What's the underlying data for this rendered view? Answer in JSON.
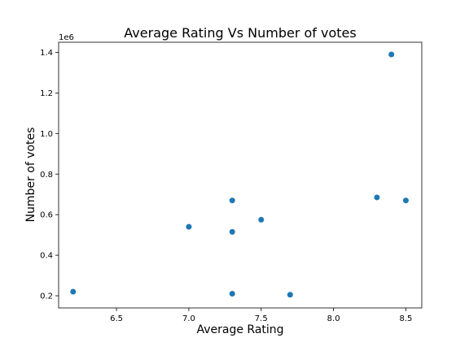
{
  "chart_data": {
    "type": "scatter",
    "title": "Average Rating  Vs Number of votes",
    "xlabel": "Average Rating",
    "ylabel": "Number of votes",
    "y_offset_label": "1e6",
    "xlim": [
      6.1,
      8.61
    ],
    "ylim": [
      0.14,
      1.45
    ],
    "xticks": [
      6.5,
      7.0,
      7.5,
      8.0,
      8.5
    ],
    "xtick_labels": [
      "6.5",
      "7.0",
      "7.5",
      "8.0",
      "8.5"
    ],
    "yticks": [
      0.2,
      0.4,
      0.6,
      0.8,
      1.0,
      1.2,
      1.4
    ],
    "ytick_labels": [
      "0.2",
      "0.4",
      "0.6",
      "0.8",
      "1.0",
      "1.2",
      "1.4"
    ],
    "grid": false,
    "marker_color": "#1f77b4",
    "points": [
      {
        "x": 6.2,
        "y": 0.22
      },
      {
        "x": 7.0,
        "y": 0.54
      },
      {
        "x": 7.3,
        "y": 0.67
      },
      {
        "x": 7.3,
        "y": 0.515
      },
      {
        "x": 7.3,
        "y": 0.21
      },
      {
        "x": 7.5,
        "y": 0.575
      },
      {
        "x": 7.7,
        "y": 0.205
      },
      {
        "x": 8.3,
        "y": 0.685
      },
      {
        "x": 8.4,
        "y": 1.39
      },
      {
        "x": 8.5,
        "y": 0.67
      }
    ]
  }
}
